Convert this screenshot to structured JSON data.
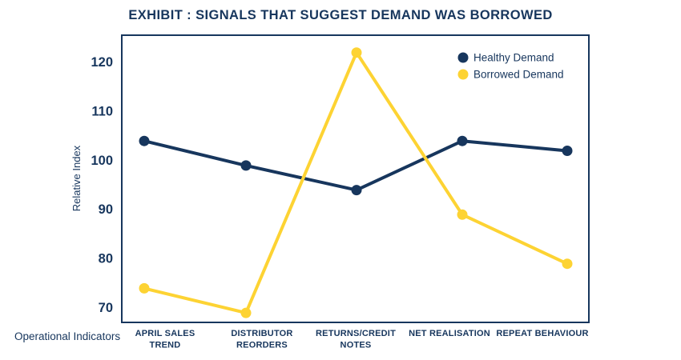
{
  "title": "EXHIBIT : SIGNALS THAT SUGGEST DEMAND WAS BORROWED",
  "colors": {
    "navy": "#17365d",
    "yellow": "#fdd333",
    "background": "#ffffff"
  },
  "chart_data": {
    "type": "line",
    "title": "EXHIBIT : SIGNALS THAT SUGGEST DEMAND WAS BORROWED",
    "xlabel": "Operational Indicators",
    "ylabel": "Relative Index",
    "categories": [
      "APRIL SALES TREND",
      "DISTRIBUTOR REORDERS",
      "RETURNS/CREDIT NOTES",
      "NET REALISATION",
      "REPEAT BEHAVIOUR"
    ],
    "category_lines": [
      [
        "APRIL SALES",
        "TREND"
      ],
      [
        "DISTRIBUTOR",
        "REORDERS"
      ],
      [
        "RETURNS/CREDIT",
        "NOTES"
      ],
      [
        "NET REALISATION"
      ],
      [
        "REPEAT BEHAVIOUR"
      ]
    ],
    "series": [
      {
        "name": "Healthy Demand",
        "color": "#17365d",
        "values": [
          104,
          99,
          94,
          104,
          102
        ]
      },
      {
        "name": "Borrowed Demand",
        "color": "#fdd333",
        "values": [
          74,
          69,
          122,
          89,
          79
        ]
      }
    ],
    "y_ticks": [
      70,
      80,
      90,
      100,
      110,
      120
    ],
    "ylim": [
      67,
      126
    ],
    "grid": false,
    "plot_border": true,
    "legend": {
      "position": "upper right",
      "entries": [
        "Healthy Demand",
        "Borrowed Demand"
      ]
    }
  }
}
